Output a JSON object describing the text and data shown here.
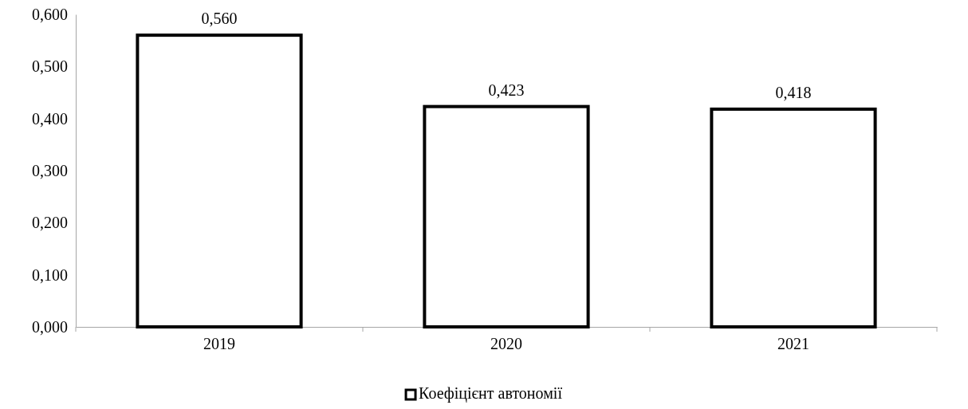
{
  "chart_data": {
    "type": "bar",
    "categories": [
      "2019",
      "2020",
      "2021"
    ],
    "series": [
      {
        "name": "Коефіцієнт автономії",
        "color": "#ffffff",
        "values": [
          0.56,
          0.423,
          0.418
        ]
      }
    ],
    "ylim": [
      0,
      0.6
    ],
    "yticks": [
      {
        "value": 0,
        "label": "0,000"
      },
      {
        "value": 0.1,
        "label": "0,100"
      },
      {
        "value": 0.2,
        "label": "0,200"
      },
      {
        "value": 0.3,
        "label": "0,300"
      },
      {
        "value": 0.4,
        "label": "0,400"
      },
      {
        "value": 0.5,
        "label": "0,500"
      },
      {
        "value": 0.6,
        "label": "0,600"
      }
    ],
    "value_labels": [
      "0,560",
      "0,423",
      "0,418"
    ],
    "grid": false,
    "legend": "bottom"
  }
}
